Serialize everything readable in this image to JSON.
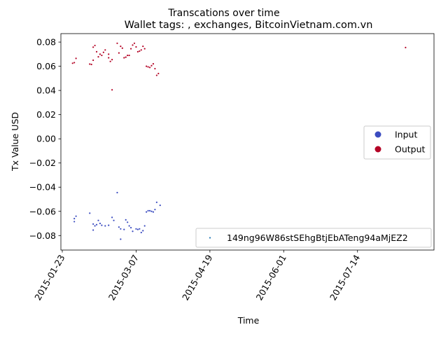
{
  "chart_data": {
    "type": "scatter",
    "title": "Transcations over time",
    "subtitle": "Wallet tags: , exchanges, BitcoinVietnam.com.vn",
    "xlabel": "Time",
    "ylabel": "Tx Value USD",
    "x_ticks": [
      "2015-01-23",
      "2015-03-07",
      "2015-04-19",
      "2015-06-01",
      "2015-07-14"
    ],
    "x_range": [
      "2015-01-23",
      "2015-08-19"
    ],
    "y_ticks": [
      "0.08",
      "0.06",
      "0.04",
      "0.02",
      "0.00",
      "−0.02",
      "−0.04",
      "−0.06",
      "−0.08"
    ],
    "ylim": [
      -0.092,
      0.087
    ],
    "grid": false,
    "legends": [
      {
        "placement": "center-right",
        "entries": [
          {
            "label": "Input",
            "color": "#3b4cc0"
          },
          {
            "label": "Output",
            "color": "#b40426"
          }
        ]
      },
      {
        "placement": "lower-right",
        "entries": [
          {
            "label": "149ng96W86stSEhgBtjEbATeng94aMjEZ2",
            "color": "#1f77b4"
          }
        ]
      }
    ],
    "series": [
      {
        "name": "Output",
        "color": "#b40426",
        "points": [
          [
            "2015-01-29",
            0.0625
          ],
          [
            "2015-01-30",
            0.063
          ],
          [
            "2015-01-31",
            0.0665
          ],
          [
            "2015-02-08",
            0.0618
          ],
          [
            "2015-02-09",
            0.0615
          ],
          [
            "2015-02-10",
            0.065
          ],
          [
            "2015-02-10",
            0.0758
          ],
          [
            "2015-02-11",
            0.0772
          ],
          [
            "2015-02-12",
            0.072
          ],
          [
            "2015-02-13",
            0.0678
          ],
          [
            "2015-02-14",
            0.07
          ],
          [
            "2015-02-15",
            0.069
          ],
          [
            "2015-02-16",
            0.0715
          ],
          [
            "2015-02-17",
            0.0735
          ],
          [
            "2015-02-19",
            0.07
          ],
          [
            "2015-02-19",
            0.067
          ],
          [
            "2015-02-20",
            0.064
          ],
          [
            "2015-02-21",
            0.0655
          ],
          [
            "2015-02-21",
            0.0405
          ],
          [
            "2015-02-24",
            0.079
          ],
          [
            "2015-02-25",
            0.071
          ],
          [
            "2015-02-26",
            0.0765
          ],
          [
            "2015-02-27",
            0.075
          ],
          [
            "2015-02-28",
            0.067
          ],
          [
            "2015-03-01",
            0.0675
          ],
          [
            "2015-03-02",
            0.069
          ],
          [
            "2015-03-03",
            0.069
          ],
          [
            "2015-03-04",
            0.0745
          ],
          [
            "2015-03-05",
            0.0775
          ],
          [
            "2015-03-06",
            0.079
          ],
          [
            "2015-03-07",
            0.076
          ],
          [
            "2015-03-08",
            0.072
          ],
          [
            "2015-03-09",
            0.0725
          ],
          [
            "2015-03-10",
            0.0735
          ],
          [
            "2015-03-11",
            0.0765
          ],
          [
            "2015-03-12",
            0.0745
          ],
          [
            "2015-03-13",
            0.06
          ],
          [
            "2015-03-14",
            0.0595
          ],
          [
            "2015-03-15",
            0.059
          ],
          [
            "2015-03-16",
            0.0605
          ],
          [
            "2015-03-17",
            0.062
          ],
          [
            "2015-03-18",
            0.058
          ],
          [
            "2015-03-19",
            0.0525
          ],
          [
            "2015-03-20",
            0.054
          ],
          [
            "2015-08-11",
            0.0755
          ]
        ]
      },
      {
        "name": "Input",
        "color": "#3b4cc0",
        "points": [
          [
            "2015-01-30",
            -0.066
          ],
          [
            "2015-01-30",
            -0.0685
          ],
          [
            "2015-01-31",
            -0.064
          ],
          [
            "2015-02-08",
            -0.0615
          ],
          [
            "2015-02-10",
            -0.0705
          ],
          [
            "2015-02-10",
            -0.0755
          ],
          [
            "2015-02-11",
            -0.072
          ],
          [
            "2015-02-12",
            -0.071
          ],
          [
            "2015-02-13",
            -0.0675
          ],
          [
            "2015-02-14",
            -0.07
          ],
          [
            "2015-02-15",
            -0.0715
          ],
          [
            "2015-02-17",
            -0.072
          ],
          [
            "2015-02-19",
            -0.0715
          ],
          [
            "2015-02-21",
            -0.065
          ],
          [
            "2015-02-22",
            -0.0675
          ],
          [
            "2015-02-24",
            -0.0445
          ],
          [
            "2015-02-25",
            -0.073
          ],
          [
            "2015-02-26",
            -0.083
          ],
          [
            "2015-02-26",
            -0.0745
          ],
          [
            "2015-02-28",
            -0.075
          ],
          [
            "2015-03-01",
            -0.067
          ],
          [
            "2015-03-02",
            -0.069
          ],
          [
            "2015-03-03",
            -0.072
          ],
          [
            "2015-03-04",
            -0.0735
          ],
          [
            "2015-03-05",
            -0.0765
          ],
          [
            "2015-03-07",
            -0.0745
          ],
          [
            "2015-03-08",
            -0.075
          ],
          [
            "2015-03-09",
            -0.0745
          ],
          [
            "2015-03-10",
            -0.0775
          ],
          [
            "2015-03-11",
            -0.076
          ],
          [
            "2015-03-12",
            -0.072
          ],
          [
            "2015-03-13",
            -0.0605
          ],
          [
            "2015-03-14",
            -0.0595
          ],
          [
            "2015-03-15",
            -0.0595
          ],
          [
            "2015-03-16",
            -0.06
          ],
          [
            "2015-03-17",
            -0.0605
          ],
          [
            "2015-03-18",
            -0.0585
          ],
          [
            "2015-03-19",
            -0.0525
          ],
          [
            "2015-03-21",
            -0.055
          ]
        ]
      }
    ]
  }
}
